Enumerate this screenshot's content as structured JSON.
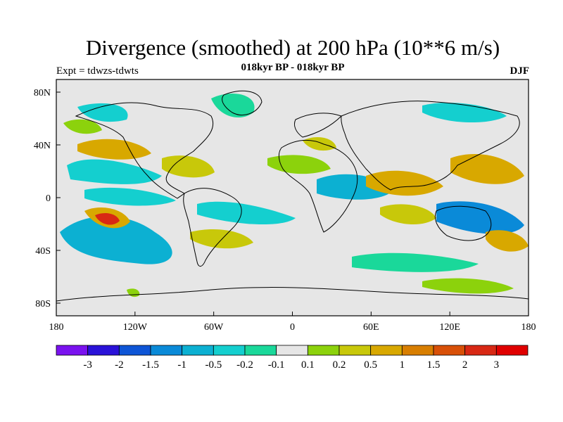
{
  "title": "Divergence (smoothed) at 200 hPa (10**6 m/s)",
  "subtitle": "018kyr BP - 018kyr BP",
  "experiment": "Expt = tdwzs-tdwts",
  "season": "DJF",
  "map": {
    "y_ticks": [
      "80N",
      "40N",
      "0",
      "40S",
      "80S"
    ],
    "x_ticks": [
      "180",
      "120W",
      "60W",
      "0",
      "60E",
      "120E",
      "180"
    ],
    "background_color": "#e6e6e6"
  },
  "colorbar": {
    "labels": [
      "-3",
      "-2",
      "-1.5",
      "-1",
      "-0.5",
      "-0.2",
      "-0.1",
      "0.1",
      "0.2",
      "0.5",
      "1",
      "1.5",
      "2",
      "3"
    ],
    "colors": [
      "#7a12ef",
      "#2a12d8",
      "#0e55d6",
      "#0a8ad8",
      "#0cb0d2",
      "#14cfcf",
      "#1ad89a",
      "#e6e6e6",
      "#8cd20c",
      "#c8c80a",
      "#d8a800",
      "#d87e00",
      "#d85008",
      "#d82814",
      "#e00000"
    ]
  }
}
